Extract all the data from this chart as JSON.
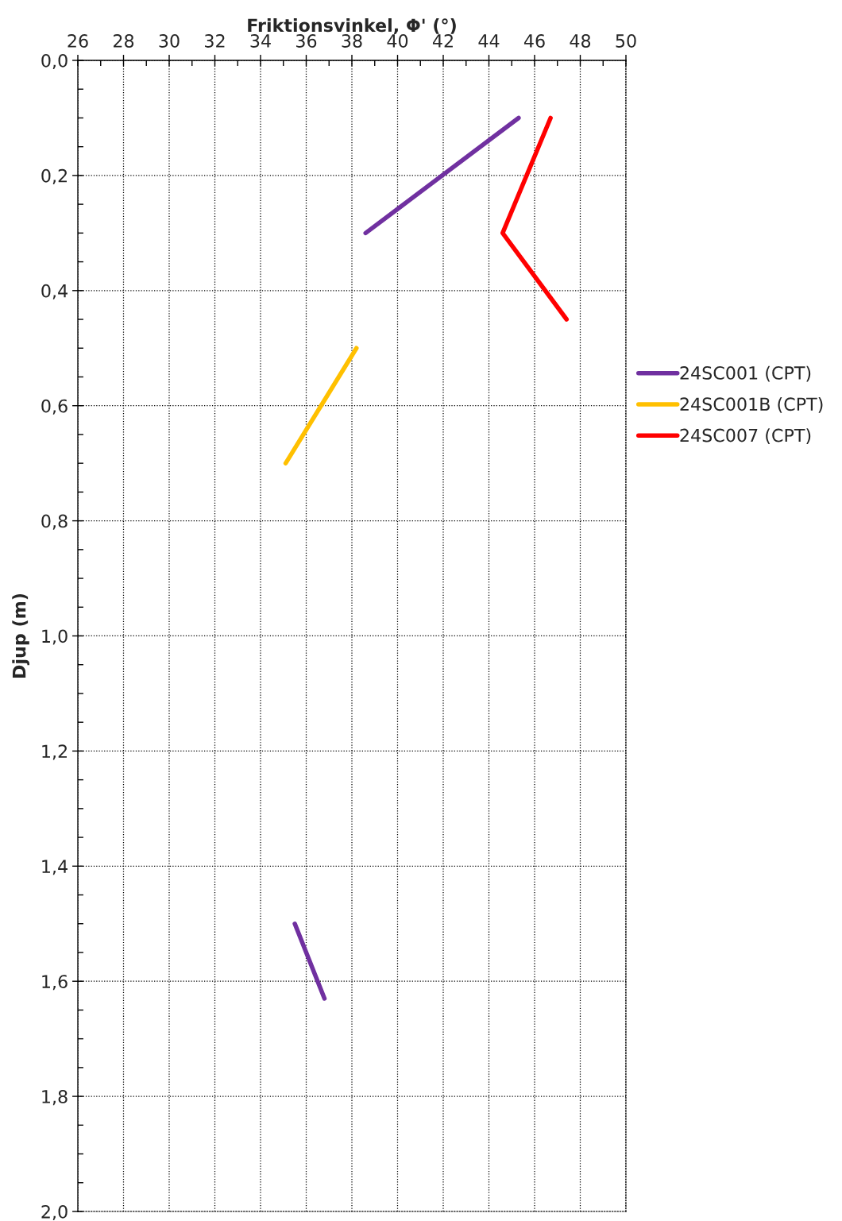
{
  "chart_data": {
    "type": "line",
    "xlabel": "Friktionsvinkel, Φ' (°)",
    "ylabel": "Djup (m)",
    "xlim": [
      26,
      50
    ],
    "xticks": [
      26,
      28,
      30,
      32,
      34,
      36,
      38,
      40,
      42,
      44,
      46,
      48,
      50
    ],
    "ylim": [
      2.0,
      0.0
    ],
    "yticks": [
      {
        "value": 0.0,
        "label": "0,0"
      },
      {
        "value": 0.2,
        "label": "0,2"
      },
      {
        "value": 0.4,
        "label": "0,4"
      },
      {
        "value": 0.6,
        "label": "0,6"
      },
      {
        "value": 0.8,
        "label": "0,8"
      },
      {
        "value": 1.0,
        "label": "1,0"
      },
      {
        "value": 1.2,
        "label": "1,2"
      },
      {
        "value": 1.4,
        "label": "1,4"
      },
      {
        "value": 1.6,
        "label": "1,6"
      },
      {
        "value": 1.8,
        "label": "1,8"
      },
      {
        "value": 2.0,
        "label": "2,0"
      }
    ],
    "grid": true,
    "legend": "right",
    "marker": "none",
    "line_style": "solid",
    "series": [
      {
        "name": "24SC001 (CPT)",
        "color": "#7030a0",
        "x": [
          45.3,
          38.6,
          null,
          35.5,
          36.8
        ],
        "values": [
          0.1,
          0.3,
          null,
          1.5,
          1.63
        ]
      },
      {
        "name": "24SC001B (CPT)",
        "color": "#ffc000",
        "x": [
          38.2,
          35.1
        ],
        "values": [
          0.5,
          0.7
        ]
      },
      {
        "name": "24SC007 (CPT)",
        "color": "#ff0000",
        "x": [
          46.7,
          44.6,
          47.4
        ],
        "values": [
          0.1,
          0.3,
          0.45
        ]
      }
    ]
  }
}
